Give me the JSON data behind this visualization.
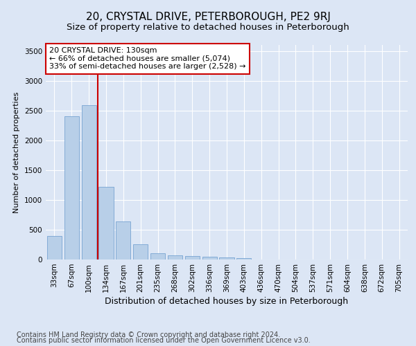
{
  "title": "20, CRYSTAL DRIVE, PETERBOROUGH, PE2 9RJ",
  "subtitle": "Size of property relative to detached houses in Peterborough",
  "xlabel": "Distribution of detached houses by size in Peterborough",
  "ylabel": "Number of detached properties",
  "categories": [
    "33sqm",
    "67sqm",
    "100sqm",
    "134sqm",
    "167sqm",
    "201sqm",
    "235sqm",
    "268sqm",
    "302sqm",
    "336sqm",
    "369sqm",
    "403sqm",
    "436sqm",
    "470sqm",
    "504sqm",
    "537sqm",
    "571sqm",
    "604sqm",
    "638sqm",
    "672sqm",
    "705sqm"
  ],
  "values": [
    390,
    2400,
    2590,
    1220,
    640,
    250,
    100,
    65,
    55,
    50,
    30,
    20,
    0,
    0,
    0,
    0,
    0,
    0,
    0,
    0,
    0
  ],
  "bar_color": "#b8cfe8",
  "bar_edge_color": "#6699cc",
  "highlight_line_color": "#cc0000",
  "annotation_text": "20 CRYSTAL DRIVE: 130sqm\n← 66% of detached houses are smaller (5,074)\n33% of semi-detached houses are larger (2,528) →",
  "annotation_box_color": "#ffffff",
  "annotation_box_edge_color": "#cc0000",
  "ylim": [
    0,
    3600
  ],
  "yticks": [
    0,
    500,
    1000,
    1500,
    2000,
    2500,
    3000,
    3500
  ],
  "bg_color": "#dce6f5",
  "plot_bg_color": "#dce6f5",
  "footer_line1": "Contains HM Land Registry data © Crown copyright and database right 2024.",
  "footer_line2": "Contains public sector information licensed under the Open Government Licence v3.0.",
  "title_fontsize": 11,
  "subtitle_fontsize": 9.5,
  "xlabel_fontsize": 9,
  "ylabel_fontsize": 8,
  "tick_fontsize": 7.5,
  "footer_fontsize": 7,
  "annotation_fontsize": 8
}
